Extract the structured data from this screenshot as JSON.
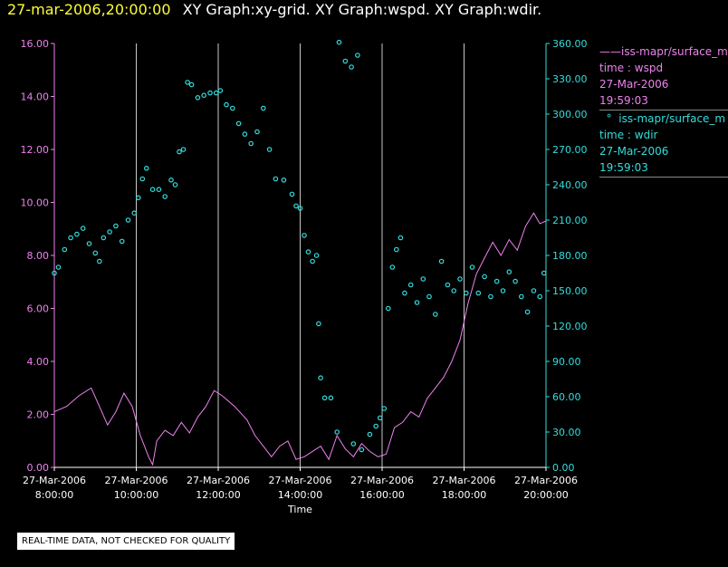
{
  "title": {
    "date": "27-mar-2006,20:00:00",
    "graphs": "XY Graph:xy-grid.  XY Graph:wspd.  XY Graph:wdir."
  },
  "legend": {
    "wspd": {
      "marker": "——",
      "source": "iss-mapr/surface_m",
      "field": "time : wspd",
      "date": "27-Mar-2006",
      "time": "19:59:03"
    },
    "wdir": {
      "marker": "°",
      "source": "iss-mapr/surface_m",
      "field": "time : wdir",
      "date": "27-Mar-2006",
      "time": "19:59:03"
    }
  },
  "note": "REAL-TIME DATA, NOT CHECKED FOR QUALITY",
  "colors": {
    "wspd": "#ee82ee",
    "wdir": "#33dddd",
    "grid": "#c8c8c8",
    "title": "#ffff33"
  },
  "chart_data": {
    "type": "line",
    "xlabel": "Time",
    "x_ticks": [
      {
        "date": "27-Mar-2006",
        "time": "8:00:00",
        "h": 8
      },
      {
        "date": "27-Mar-2006",
        "time": "10:00:00",
        "h": 10
      },
      {
        "date": "27-Mar-2006",
        "time": "12:00:00",
        "h": 12
      },
      {
        "date": "27-Mar-2006",
        "time": "14:00:00",
        "h": 14
      },
      {
        "date": "27-Mar-2006",
        "time": "16:00:00",
        "h": 16
      },
      {
        "date": "27-Mar-2006",
        "time": "18:00:00",
        "h": 18
      },
      {
        "date": "27-Mar-2006",
        "time": "20:00:00",
        "h": 20
      }
    ],
    "xlim": [
      8,
      20
    ],
    "y_left": {
      "name": "wspd",
      "ylim": [
        0,
        16
      ],
      "ticks": [
        "0.00",
        "2.00",
        "4.00",
        "6.00",
        "8.00",
        "10.00",
        "12.00",
        "14.00",
        "16.00"
      ]
    },
    "y_right": {
      "name": "wdir",
      "ylim": [
        0,
        360
      ],
      "ticks": [
        "0.00",
        "30.00",
        "60.00",
        "90.00",
        "120.00",
        "150.00",
        "180.00",
        "210.00",
        "240.00",
        "270.00",
        "300.00",
        "330.00",
        "360.00"
      ]
    },
    "grid": "vertical",
    "series": [
      {
        "name": "wspd",
        "style": "line",
        "axis": "left",
        "points": [
          [
            8.0,
            2.1
          ],
          [
            8.3,
            2.3
          ],
          [
            8.6,
            2.7
          ],
          [
            8.9,
            3.0
          ],
          [
            9.1,
            2.3
          ],
          [
            9.3,
            1.6
          ],
          [
            9.5,
            2.1
          ],
          [
            9.7,
            2.8
          ],
          [
            9.9,
            2.3
          ],
          [
            10.1,
            1.2
          ],
          [
            10.3,
            0.4
          ],
          [
            10.4,
            0.1
          ],
          [
            10.5,
            1.0
          ],
          [
            10.7,
            1.4
          ],
          [
            10.9,
            1.2
          ],
          [
            11.1,
            1.7
          ],
          [
            11.3,
            1.3
          ],
          [
            11.5,
            1.9
          ],
          [
            11.7,
            2.3
          ],
          [
            11.9,
            2.9
          ],
          [
            12.1,
            2.7
          ],
          [
            12.4,
            2.3
          ],
          [
            12.7,
            1.8
          ],
          [
            12.9,
            1.2
          ],
          [
            13.1,
            0.8
          ],
          [
            13.3,
            0.4
          ],
          [
            13.5,
            0.8
          ],
          [
            13.7,
            1.0
          ],
          [
            13.9,
            0.3
          ],
          [
            14.1,
            0.4
          ],
          [
            14.3,
            0.6
          ],
          [
            14.5,
            0.8
          ],
          [
            14.7,
            0.3
          ],
          [
            14.9,
            1.2
          ],
          [
            15.1,
            0.7
          ],
          [
            15.3,
            0.4
          ],
          [
            15.5,
            0.9
          ],
          [
            15.7,
            0.6
          ],
          [
            15.9,
            0.4
          ],
          [
            16.1,
            0.5
          ],
          [
            16.3,
            1.5
          ],
          [
            16.5,
            1.7
          ],
          [
            16.7,
            2.1
          ],
          [
            16.9,
            1.9
          ],
          [
            17.1,
            2.6
          ],
          [
            17.3,
            3.0
          ],
          [
            17.5,
            3.4
          ],
          [
            17.7,
            4.0
          ],
          [
            17.9,
            4.8
          ],
          [
            18.1,
            6.2
          ],
          [
            18.3,
            7.3
          ],
          [
            18.5,
            7.9
          ],
          [
            18.7,
            8.5
          ],
          [
            18.9,
            8.0
          ],
          [
            19.1,
            8.6
          ],
          [
            19.3,
            8.2
          ],
          [
            19.5,
            9.1
          ],
          [
            19.7,
            9.6
          ],
          [
            19.85,
            9.2
          ],
          [
            20.0,
            9.3
          ]
        ]
      },
      {
        "name": "wdir",
        "style": "scatter",
        "axis": "right",
        "points": [
          [
            8.0,
            165
          ],
          [
            8.1,
            170
          ],
          [
            8.25,
            185
          ],
          [
            8.4,
            195
          ],
          [
            8.55,
            198
          ],
          [
            8.7,
            203
          ],
          [
            8.85,
            190
          ],
          [
            9.0,
            182
          ],
          [
            9.1,
            175
          ],
          [
            9.2,
            195
          ],
          [
            9.35,
            200
          ],
          [
            9.5,
            205
          ],
          [
            9.65,
            192
          ],
          [
            9.8,
            210
          ],
          [
            9.95,
            216
          ],
          [
            10.05,
            229
          ],
          [
            10.15,
            245
          ],
          [
            10.25,
            254
          ],
          [
            10.4,
            236
          ],
          [
            10.55,
            236
          ],
          [
            10.7,
            230
          ],
          [
            10.85,
            244
          ],
          [
            10.95,
            240
          ],
          [
            11.05,
            268
          ],
          [
            11.15,
            270
          ],
          [
            11.25,
            327
          ],
          [
            11.35,
            325
          ],
          [
            11.5,
            314
          ],
          [
            11.65,
            316
          ],
          [
            11.8,
            318
          ],
          [
            11.95,
            318
          ],
          [
            12.05,
            320
          ],
          [
            12.2,
            308
          ],
          [
            12.35,
            305
          ],
          [
            12.5,
            292
          ],
          [
            12.65,
            283
          ],
          [
            12.8,
            275
          ],
          [
            12.95,
            285
          ],
          [
            13.1,
            305
          ],
          [
            13.25,
            270
          ],
          [
            13.4,
            245
          ],
          [
            13.6,
            244
          ],
          [
            13.8,
            232
          ],
          [
            13.9,
            222
          ],
          [
            14.0,
            220
          ],
          [
            14.1,
            197
          ],
          [
            14.2,
            183
          ],
          [
            14.3,
            175
          ],
          [
            14.4,
            180
          ],
          [
            14.45,
            122
          ],
          [
            14.5,
            76
          ],
          [
            14.6,
            59
          ],
          [
            14.75,
            59
          ],
          [
            14.95,
            361
          ],
          [
            15.1,
            345
          ],
          [
            15.25,
            340
          ],
          [
            15.4,
            350
          ],
          [
            14.9,
            30
          ],
          [
            15.3,
            20
          ],
          [
            15.5,
            15
          ],
          [
            15.7,
            28
          ],
          [
            15.85,
            35
          ],
          [
            15.95,
            42
          ],
          [
            16.05,
            50
          ],
          [
            16.15,
            135
          ],
          [
            16.25,
            170
          ],
          [
            16.35,
            185
          ],
          [
            16.45,
            195
          ],
          [
            16.55,
            148
          ],
          [
            16.7,
            155
          ],
          [
            16.85,
            140
          ],
          [
            17.0,
            160
          ],
          [
            17.15,
            145
          ],
          [
            17.3,
            130
          ],
          [
            17.45,
            175
          ],
          [
            17.6,
            155
          ],
          [
            17.75,
            150
          ],
          [
            17.9,
            160
          ],
          [
            18.05,
            148
          ],
          [
            18.2,
            170
          ],
          [
            18.35,
            148
          ],
          [
            18.5,
            162
          ],
          [
            18.65,
            145
          ],
          [
            18.8,
            158
          ],
          [
            18.95,
            150
          ],
          [
            19.1,
            166
          ],
          [
            19.25,
            158
          ],
          [
            19.4,
            145
          ],
          [
            19.55,
            132
          ],
          [
            19.7,
            150
          ],
          [
            19.85,
            145
          ],
          [
            19.95,
            165
          ]
        ]
      }
    ]
  }
}
